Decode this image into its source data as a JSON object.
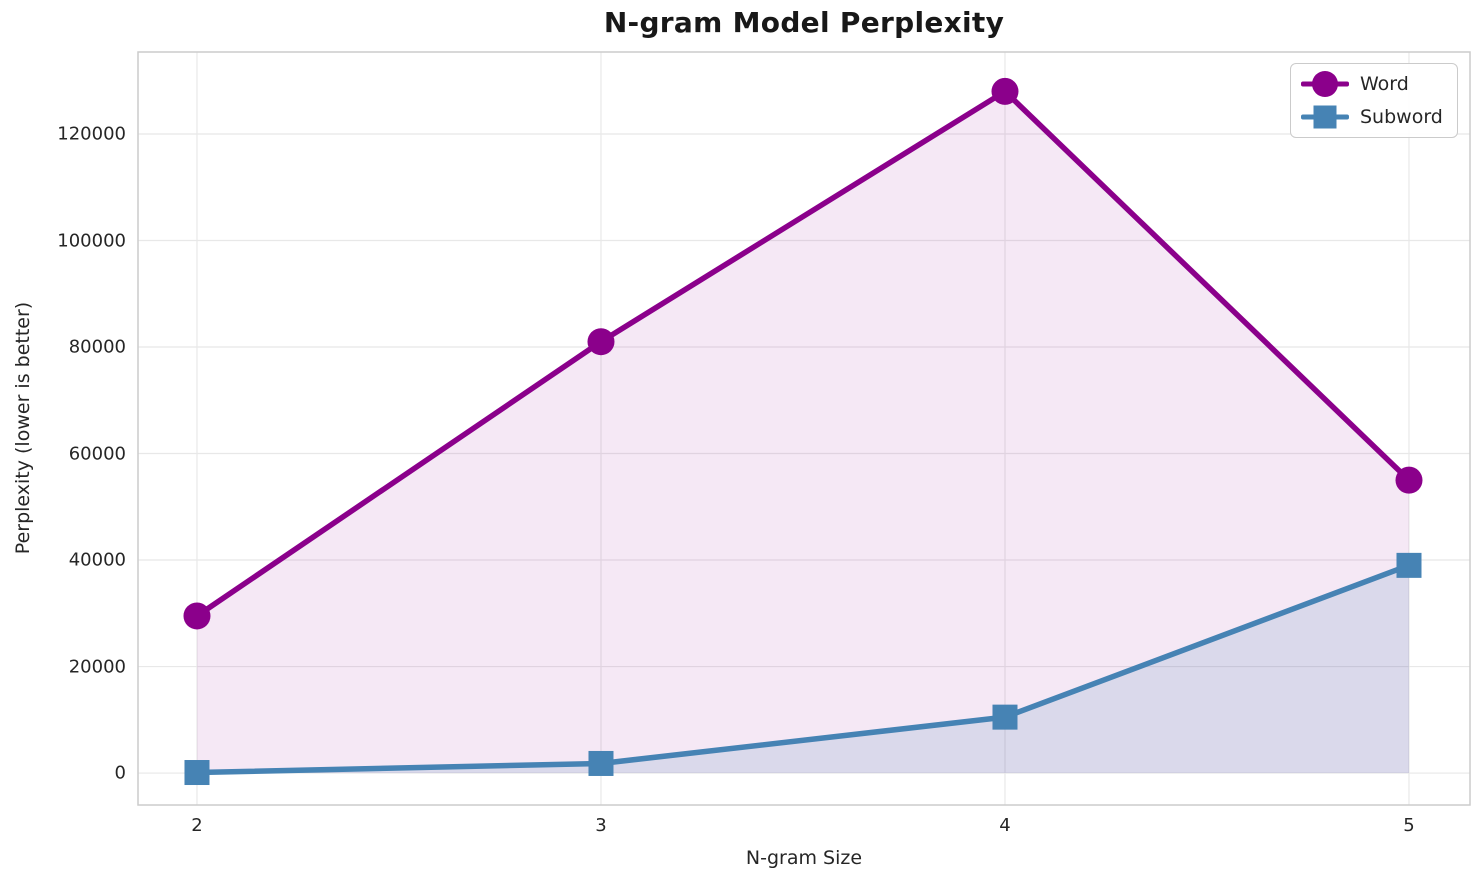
{
  "chart_data": {
    "type": "line",
    "title": "N-gram Model Perplexity",
    "xlabel": "N-gram Size",
    "ylabel": "Perplexity (lower is better)",
    "x": [
      2,
      3,
      4,
      5
    ],
    "xtick_labels": [
      "2",
      "3",
      "4",
      "5"
    ],
    "yticks": [
      0,
      20000,
      40000,
      60000,
      80000,
      100000,
      120000
    ],
    "ytick_labels": [
      "0",
      "20000",
      "40000",
      "60000",
      "80000",
      "100000",
      "120000"
    ],
    "xlim": [
      1.854,
      5.151
    ],
    "ylim": [
      -6000,
      135400
    ],
    "grid": true,
    "legend_position": "upper right",
    "area_fill_baseline": 0,
    "series": [
      {
        "name": "Word",
        "marker": "circle",
        "color": "#8B008B",
        "fill_alpha": 0.09,
        "values": [
          29500,
          81000,
          128000,
          55000
        ]
      },
      {
        "name": "Subword",
        "marker": "square",
        "color": "#4683B4",
        "fill_alpha": 0.15,
        "values": [
          100,
          1800,
          10500,
          39000
        ]
      }
    ]
  },
  "colors": {
    "grid": "#e8e8e8",
    "spine": "#cccccc",
    "tick_text": "#262626",
    "title_text": "#181818",
    "background": "#ffffff"
  }
}
